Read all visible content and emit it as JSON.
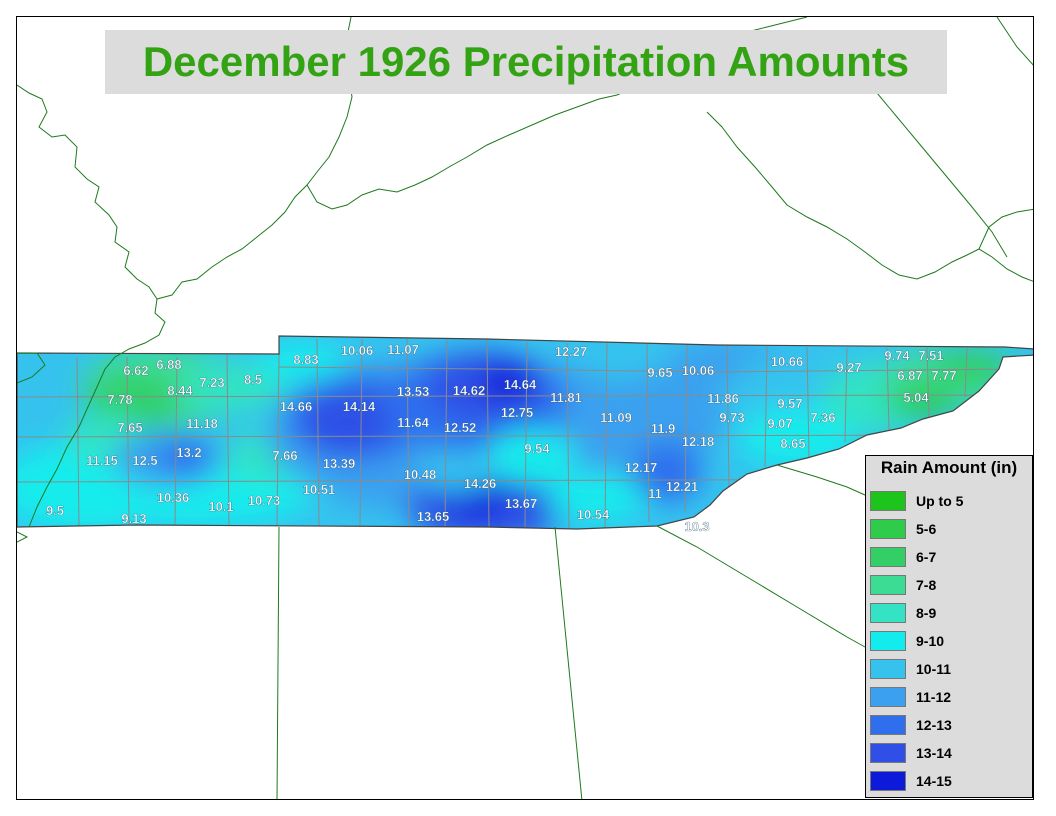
{
  "title": "December 1926 Precipitation Amounts",
  "colors": {
    "title_text": "#33a314",
    "title_bg": "#dcdcdc",
    "boundary_lines": "#1d7a1d",
    "county_lines": "#8a8a8a",
    "label_text": "#ffffff"
  },
  "legend": {
    "title": "Rain Amount (in)",
    "items": [
      {
        "label": "Up to 5",
        "color": "#1cc41c"
      },
      {
        "label": "5-6",
        "color": "#2fcb4b"
      },
      {
        "label": "6-7",
        "color": "#33cf66"
      },
      {
        "label": "7-8",
        "color": "#3ddc95"
      },
      {
        "label": "8-9",
        "color": "#33e3c3"
      },
      {
        "label": "9-10",
        "color": "#12ecec"
      },
      {
        "label": "10-11",
        "color": "#35c3ee"
      },
      {
        "label": "11-12",
        "color": "#3aa0ef"
      },
      {
        "label": "12-13",
        "color": "#2f6fee"
      },
      {
        "label": "13-14",
        "color": "#2f4fe6"
      },
      {
        "label": "14-15",
        "color": "#0d1ad9"
      }
    ]
  },
  "stations": [
    "6.62",
    "6.88",
    "7.23",
    "8.5",
    "8.44",
    "7.78",
    "7.65",
    "11.18",
    "11.15",
    "12.5",
    "13.2",
    "9.5",
    "10.36",
    "9.13",
    "10.1",
    "10.73",
    "7.66",
    "10.51",
    "13.39",
    "8.83",
    "14.66",
    "14.14",
    "10.06",
    "11.07",
    "13.53",
    "14.62",
    "14.64",
    "11.64",
    "12.52",
    "12.75",
    "11.81",
    "12.27",
    "10.48",
    "14.26",
    "13.65",
    "13.67",
    "9.54",
    "10.54",
    "11.09",
    "9.65",
    "10.06",
    "11.86",
    "9.73",
    "11.9",
    "12.18",
    "12.17",
    "11",
    "12.21",
    "10.3",
    "10.66",
    "9.27",
    "9.57",
    "9.07",
    "7.36",
    "8.65",
    "9.74",
    "7.51",
    "6.87",
    "7.77",
    "5.04"
  ]
}
